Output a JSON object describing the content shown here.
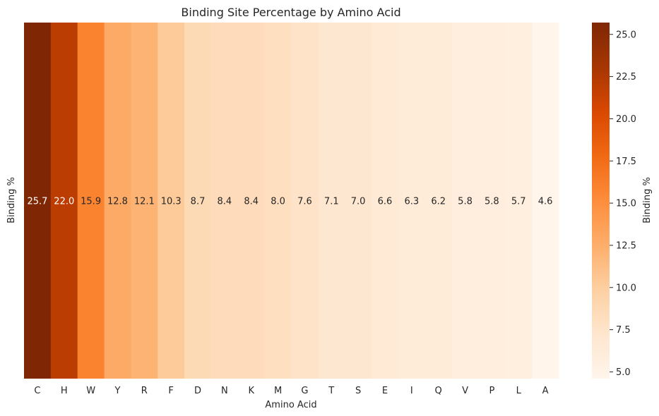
{
  "chart_data": {
    "type": "heatmap",
    "title": "Binding Site Percentage by Amino Acid",
    "xlabel": "Amino Acid",
    "ylabel": "Binding %",
    "categories": [
      "C",
      "H",
      "W",
      "Y",
      "R",
      "F",
      "D",
      "N",
      "K",
      "M",
      "G",
      "T",
      "S",
      "E",
      "I",
      "Q",
      "V",
      "P",
      "L",
      "A"
    ],
    "values": [
      25.7,
      22.0,
      15.9,
      12.8,
      12.1,
      10.3,
      8.7,
      8.4,
      8.4,
      8.0,
      7.6,
      7.1,
      7.0,
      6.6,
      6.3,
      6.2,
      5.8,
      5.8,
      5.7,
      4.6
    ],
    "value_labels": [
      "25.7",
      "22.0",
      "15.9",
      "12.8",
      "12.1",
      "10.3",
      "8.7",
      "8.4",
      "8.4",
      "8.0",
      "7.6",
      "7.1",
      "7.0",
      "6.6",
      "6.3",
      "6.2",
      "5.8",
      "5.8",
      "5.7",
      "4.6"
    ],
    "colormap": "Oranges",
    "colorbar": {
      "label": "Binding %",
      "range": [
        4.6,
        25.7
      ],
      "ticks": [
        "5.0",
        "7.5",
        "10.0",
        "12.5",
        "15.0",
        "17.5",
        "20.0",
        "22.5",
        "25.0"
      ],
      "tick_values": [
        5.0,
        7.5,
        10.0,
        12.5,
        15.0,
        17.5,
        20.0,
        22.5,
        25.0
      ]
    },
    "grid": false,
    "legend": "colorbar-right"
  }
}
